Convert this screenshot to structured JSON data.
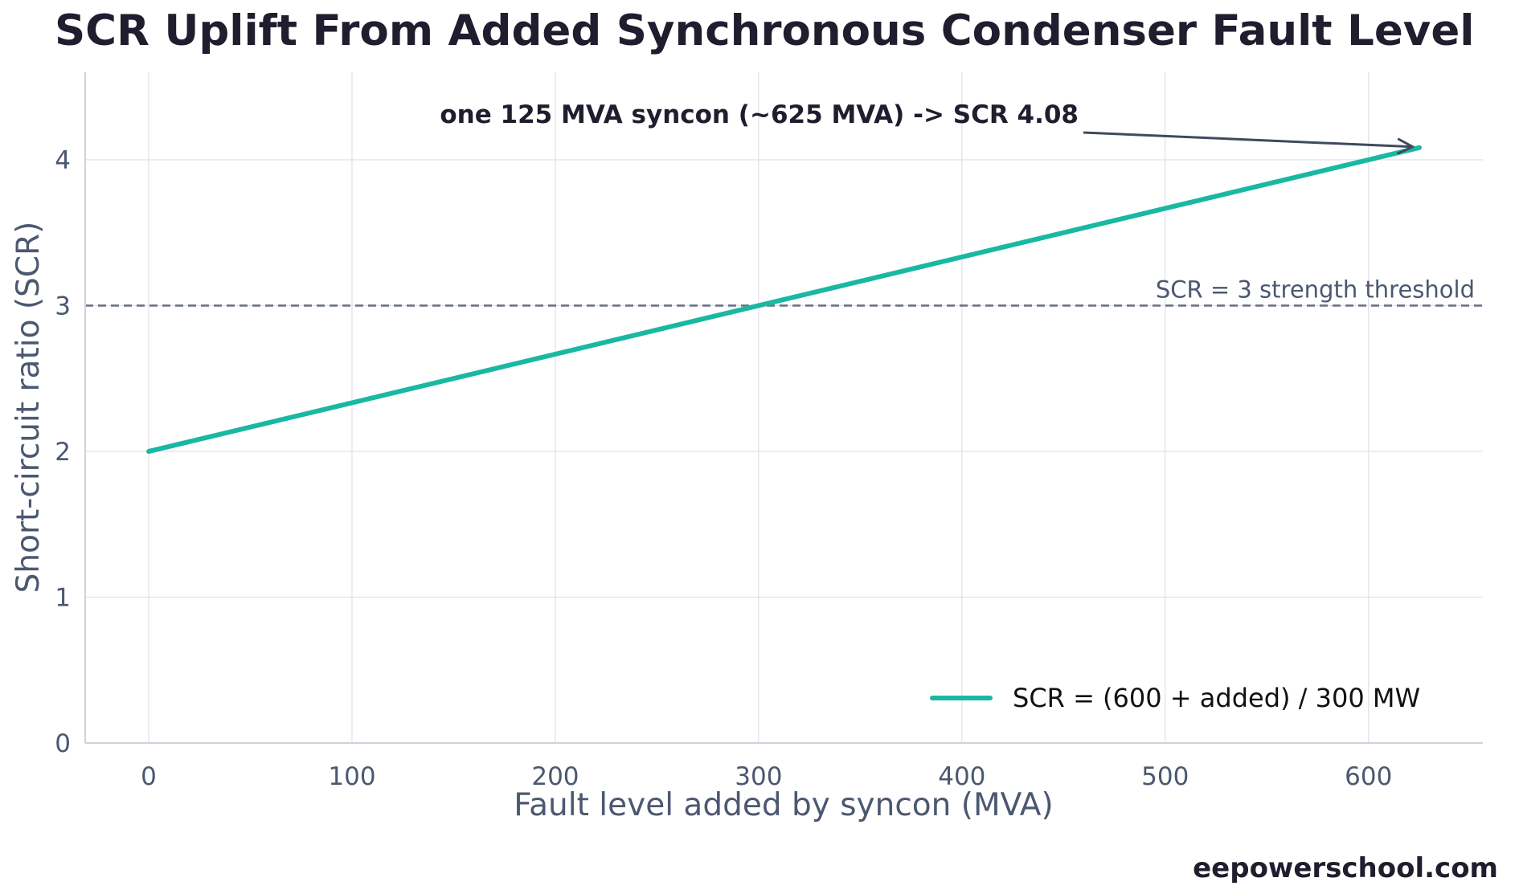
{
  "chart_data": {
    "type": "line",
    "title": "SCR Uplift From Added Synchronous Condenser Fault Level",
    "xlabel": "Fault level added by syncon (MVA)",
    "ylabel": "Short-circuit ratio (SCR)",
    "xlim": [
      -31.25,
      656.25
    ],
    "ylim": [
      0,
      4.6
    ],
    "xticks": [
      0,
      100,
      200,
      300,
      400,
      500,
      600
    ],
    "yticks": [
      0,
      1,
      2,
      3,
      4
    ],
    "grid": true,
    "legend_position": "bottom-right",
    "series": [
      {
        "name": "SCR = (600 + added) / 300 MW",
        "color": "#1ab8a3",
        "x": [
          0,
          625
        ],
        "y": [
          2.0,
          4.0833
        ]
      }
    ],
    "reference_lines": [
      {
        "axis": "y",
        "value": 3,
        "style": "dashed",
        "color": "#6b7385",
        "label": "SCR = 3 strength threshold"
      }
    ],
    "annotations": [
      {
        "text": "one 125 MVA syncon (~625 MVA) -> SCR 4.08",
        "arrow_to": [
          625,
          4.0833
        ]
      }
    ]
  },
  "watermark": "eepowerschool.com"
}
